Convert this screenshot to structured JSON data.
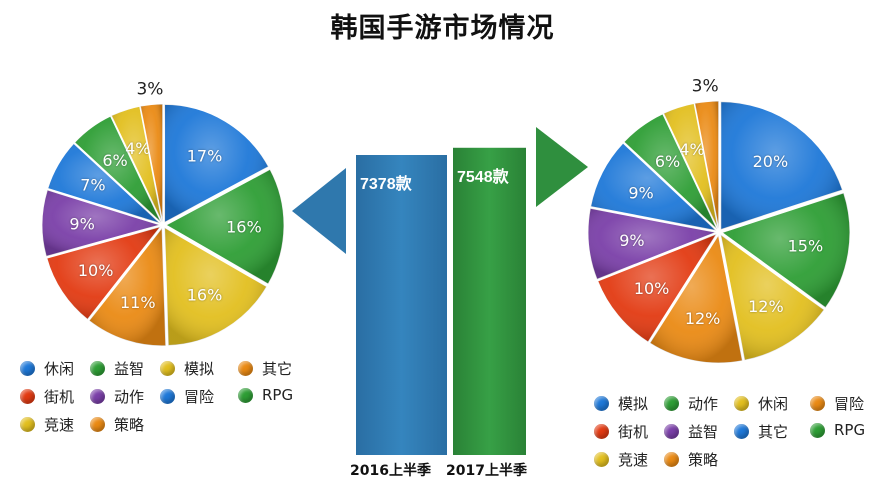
{
  "title": "韩国手游市场情况",
  "colors": {
    "blue": "#1e78d8",
    "green": "#2e9e35",
    "yellow": "#e2bf1f",
    "orange": "#ea8a14",
    "red": "#e23a12",
    "purple": "#7a3fa8",
    "bar_blue": "#2f78ad",
    "bar_green": "#2f8f3e"
  },
  "chart_data": [
    {
      "type": "pie",
      "name": "2016上半季",
      "slices": [
        {
          "label": "休闲",
          "value": 17,
          "color": "#1e78d8"
        },
        {
          "label": "益智",
          "value": 16,
          "color": "#2e9e35"
        },
        {
          "label": "模拟",
          "value": 16,
          "color": "#e2bf1f"
        },
        {
          "label": "其它",
          "value": 11,
          "color": "#ea8a14"
        },
        {
          "label": "街机",
          "value": 10,
          "color": "#e23a12"
        },
        {
          "label": "动作",
          "value": 9,
          "color": "#7a3fa8"
        },
        {
          "label": "冒险",
          "value": 7,
          "color": "#1e78d8"
        },
        {
          "label": "RPG",
          "value": 6,
          "color": "#2e9e35"
        },
        {
          "label": "竞速",
          "value": 4,
          "color": "#e2bf1f"
        },
        {
          "label": "策略",
          "value": 3,
          "color": "#ea8a14"
        }
      ]
    },
    {
      "type": "bar",
      "categories": [
        "2016上半季",
        "2017上半季"
      ],
      "values": [
        7378,
        7548
      ],
      "value_labels": [
        "7378款",
        "7548款"
      ]
    },
    {
      "type": "pie",
      "name": "2017上半季",
      "slices": [
        {
          "label": "模拟",
          "value": 20,
          "color": "#1e78d8"
        },
        {
          "label": "动作",
          "value": 15,
          "color": "#2e9e35"
        },
        {
          "label": "休闲",
          "value": 12,
          "color": "#e2bf1f"
        },
        {
          "label": "冒险",
          "value": 12,
          "color": "#ea8a14"
        },
        {
          "label": "街机",
          "value": 10,
          "color": "#e23a12"
        },
        {
          "label": "益智",
          "value": 9,
          "color": "#7a3fa8"
        },
        {
          "label": "其它",
          "value": 9,
          "color": "#1e78d8"
        },
        {
          "label": "RPG",
          "value": 6,
          "color": "#2e9e35"
        },
        {
          "label": "竞速",
          "value": 4,
          "color": "#e2bf1f"
        },
        {
          "label": "策略",
          "value": 3,
          "color": "#ea8a14"
        }
      ]
    }
  ],
  "legends": {
    "left": [
      {
        "label": "休闲",
        "color": "#1e78d8"
      },
      {
        "label": "益智",
        "color": "#2e9e35"
      },
      {
        "label": "模拟",
        "color": "#e2bf1f"
      },
      {
        "label": "其它",
        "color": "#ea8a14"
      },
      {
        "label": "街机",
        "color": "#e23a12"
      },
      {
        "label": "动作",
        "color": "#7a3fa8"
      },
      {
        "label": "冒险",
        "color": "#1e78d8"
      },
      {
        "label": "RPG",
        "color": "#2e9e35"
      },
      {
        "label": "竞速",
        "color": "#e2bf1f"
      },
      {
        "label": "策略",
        "color": "#ea8a14"
      }
    ],
    "right": [
      {
        "label": "模拟",
        "color": "#1e78d8"
      },
      {
        "label": "动作",
        "color": "#2e9e35"
      },
      {
        "label": "休闲",
        "color": "#e2bf1f"
      },
      {
        "label": "冒险",
        "color": "#ea8a14"
      },
      {
        "label": "街机",
        "color": "#e23a12"
      },
      {
        "label": "益智",
        "color": "#7a3fa8"
      },
      {
        "label": "其它",
        "color": "#1e78d8"
      },
      {
        "label": "RPG",
        "color": "#2e9e35"
      },
      {
        "label": "竞速",
        "color": "#e2bf1f"
      },
      {
        "label": "策略",
        "color": "#ea8a14"
      }
    ]
  }
}
